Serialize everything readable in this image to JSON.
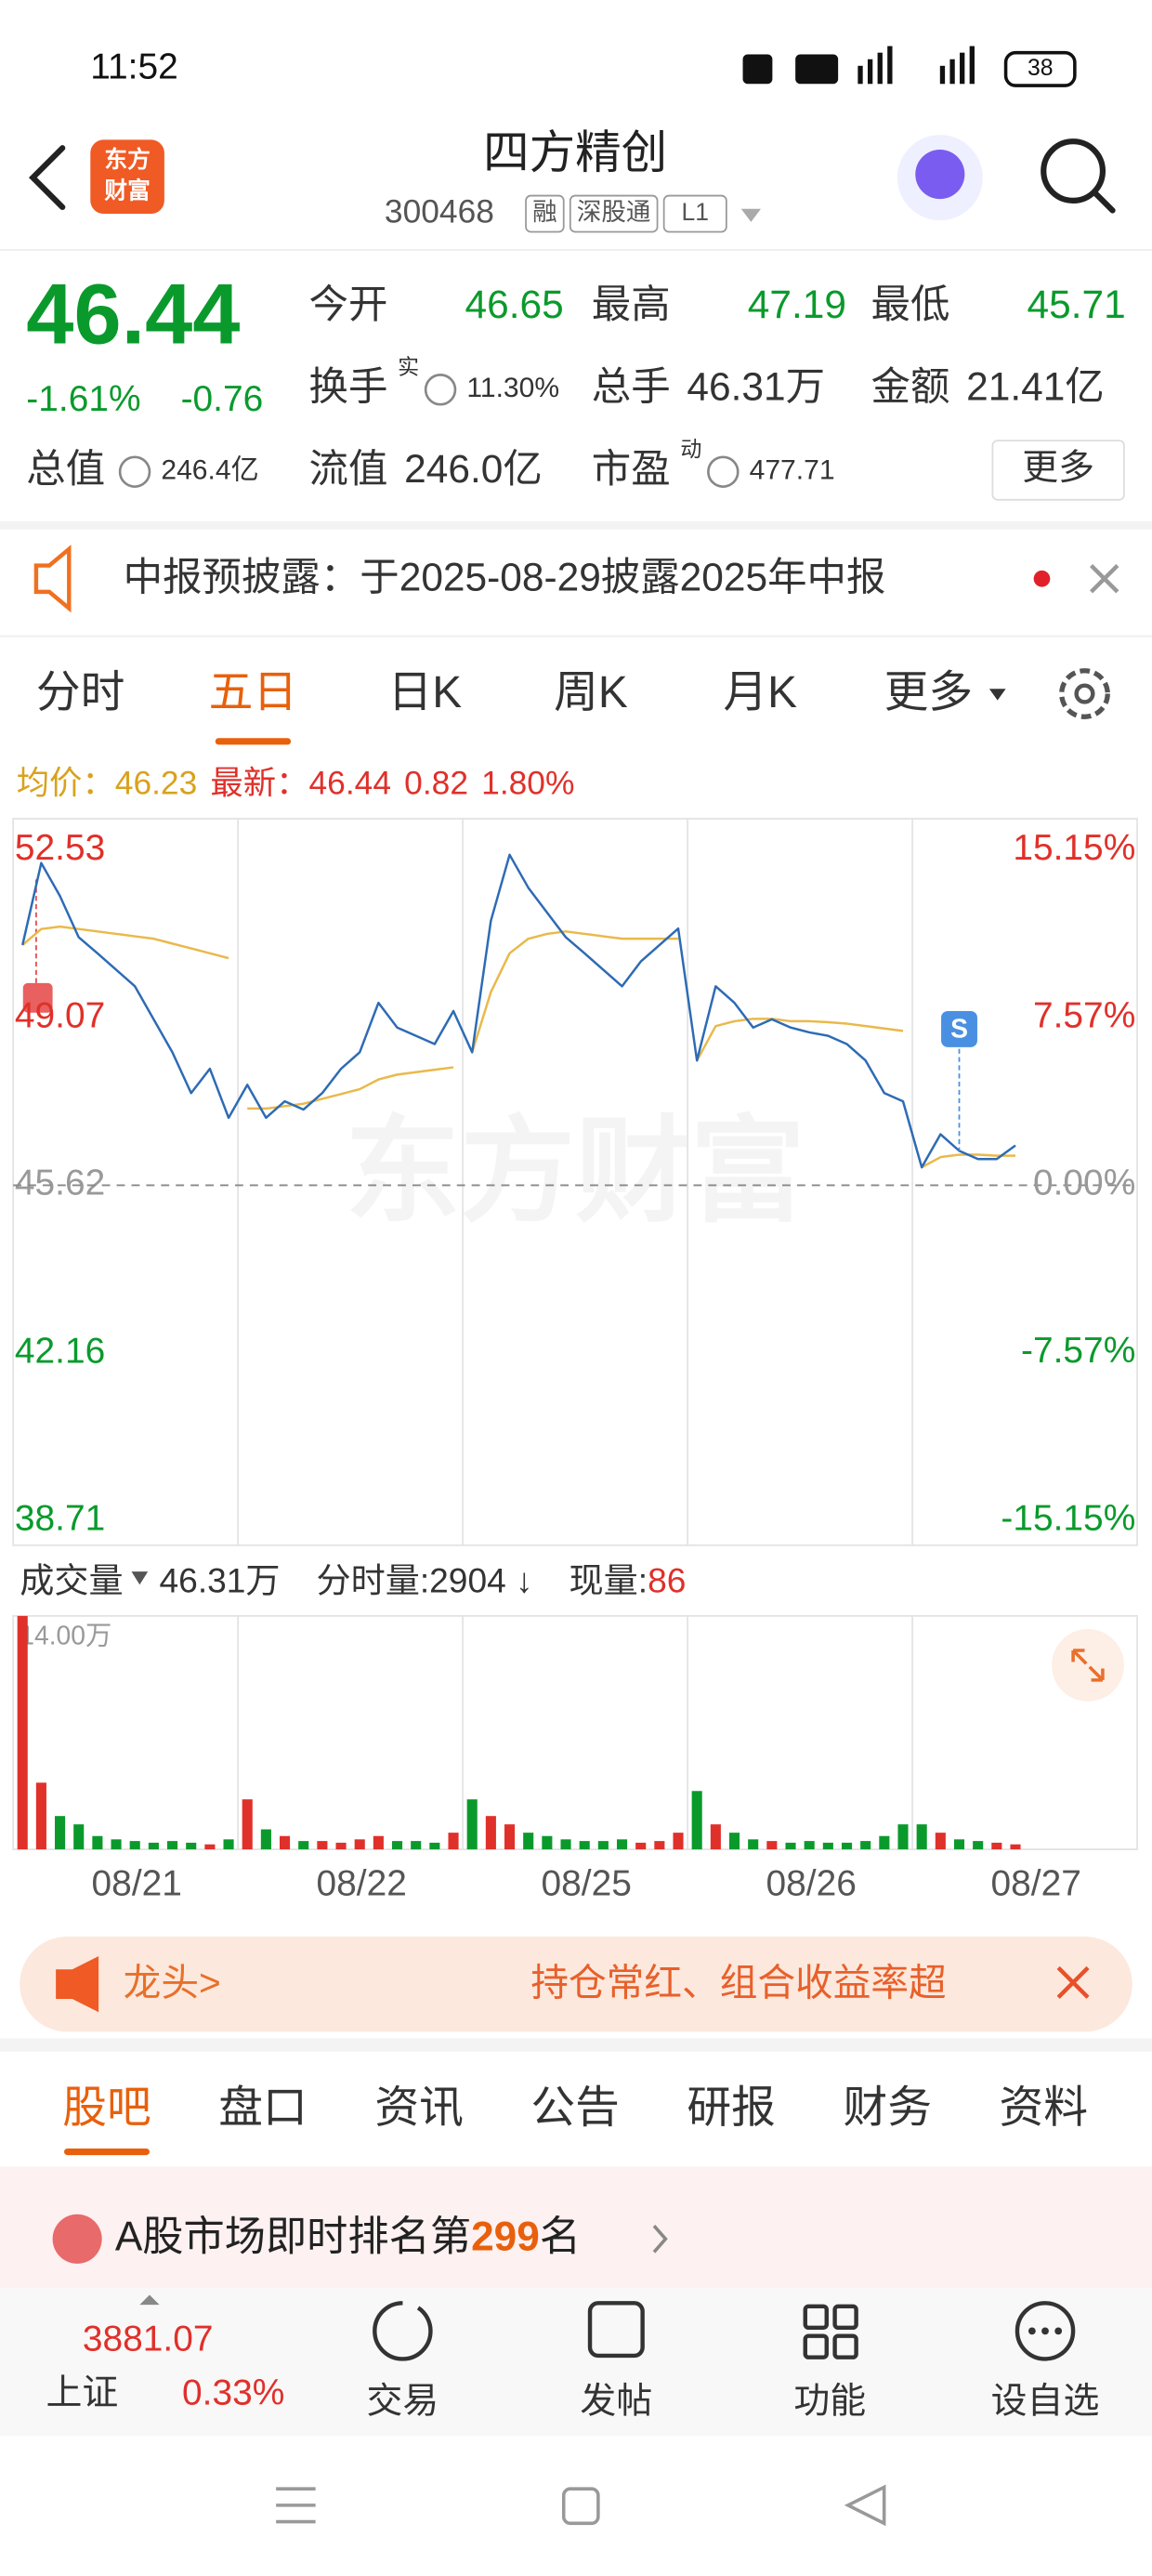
{
  "status": {
    "time": "11:52",
    "battery": "38"
  },
  "header": {
    "logo": [
      "东方",
      "财富"
    ],
    "title": "四方精创",
    "code": "300468",
    "tags": [
      "融",
      "深股通",
      "L1"
    ]
  },
  "quote": {
    "price": "46.44",
    "change_pct": "-1.61%",
    "change": "-0.76",
    "fields": [
      {
        "label": "今开",
        "value": "46.65"
      },
      {
        "label": "最高",
        "value": "47.19"
      },
      {
        "label": "最低",
        "value": "45.71"
      },
      {
        "label": "换手",
        "sup": "实",
        "value": "11.30%"
      },
      {
        "label": "总手",
        "value": "46.31万"
      },
      {
        "label": "金额",
        "value": "21.41亿"
      },
      {
        "label": "总值",
        "value": "246.4亿"
      },
      {
        "label": "流值",
        "value": "246.0亿"
      },
      {
        "label": "市盈",
        "sup": "动",
        "value": "477.71"
      }
    ],
    "more": "更多"
  },
  "notice": "中报预披露：于2025-08-29披露2025年中报",
  "tabs": {
    "items": [
      "分时",
      "五日",
      "日K",
      "周K",
      "月K",
      "更多"
    ],
    "active": 1
  },
  "legend": {
    "avg_label": "均价：",
    "avg": "46.23",
    "latest_label": "最新：",
    "latest": "46.44",
    "change": "0.82",
    "change_pct": "1.80%"
  },
  "price_chart": {
    "watermark": "东方财富",
    "ylim": [
      38.71,
      52.53
    ],
    "yticks": [
      52.53,
      49.07,
      45.62,
      42.16,
      38.71
    ],
    "y2lim": [
      -15.15,
      15.15
    ],
    "y2ticks": [
      {
        "value": 15.15,
        "label": "15.15%"
      },
      {
        "value": 7.57,
        "label": "7.57%"
      },
      {
        "value": 0,
        "label": "0.00%"
      },
      {
        "value": -7.57,
        "label": "-7.57%"
      },
      {
        "value": -15.15,
        "label": "-15.15%"
      }
    ],
    "days": [
      "08/21",
      "08/22",
      "08/25",
      "08/26",
      "08/27"
    ],
    "price": [
      50.57,
      52.26,
      51.58,
      50.73,
      50.4,
      50.06,
      49.72,
      49.04,
      48.36,
      47.52,
      48.02,
      47.01,
      47.69,
      47.01,
      47.35,
      47.18,
      47.52,
      48.02,
      48.36,
      49.38,
      48.87,
      48.7,
      48.53,
      49.21,
      48.36,
      51.07,
      52.43,
      51.75,
      51.24,
      50.73,
      50.4,
      50.06,
      49.72,
      50.23,
      50.57,
      50.91,
      48.19,
      49.72,
      49.38,
      48.87,
      49.04,
      48.87,
      48.77,
      48.7,
      48.53,
      48.19,
      47.52,
      47.35,
      45.99,
      46.67,
      46.33,
      46.16,
      46.16,
      46.44,
      null,
      null,
      null,
      null,
      null,
      null
    ],
    "avg": [
      50.57,
      50.9,
      50.95,
      50.9,
      50.85,
      50.8,
      50.75,
      50.7,
      50.6,
      50.5,
      50.4,
      50.3,
      47.2,
      47.2,
      47.25,
      47.3,
      47.4,
      47.5,
      47.6,
      47.8,
      47.9,
      47.95,
      48.0,
      48.05,
      48.36,
      49.6,
      50.4,
      50.7,
      50.8,
      50.85,
      50.8,
      50.75,
      50.7,
      50.7,
      50.7,
      50.7,
      48.19,
      48.9,
      49.0,
      49.05,
      49.05,
      49.0,
      49.0,
      48.98,
      48.95,
      48.9,
      48.85,
      48.8,
      45.99,
      46.2,
      46.25,
      46.25,
      46.23,
      46.23,
      null,
      null,
      null,
      null,
      null,
      null
    ],
    "marker": "S"
  },
  "volume": {
    "label": "成交量",
    "total": "46.31万",
    "tick_label": "分时量:2904 ↓",
    "now_label": "现量:",
    "now": "86",
    "ylim": [
      0,
      14
    ],
    "yticks": [
      {
        "value": 14,
        "label": "14.00万"
      }
    ],
    "values": [
      14,
      4,
      2,
      1.5,
      0.8,
      0.6,
      0.5,
      0.4,
      0.5,
      0.4,
      0.3,
      0.6,
      3,
      1.2,
      0.8,
      0.5,
      0.5,
      0.4,
      0.6,
      0.8,
      0.5,
      0.5,
      0.4,
      1.0,
      3,
      2,
      1.5,
      1,
      0.8,
      0.6,
      0.5,
      0.5,
      0.6,
      0.4,
      0.5,
      1,
      3.5,
      1.5,
      1,
      0.6,
      0.5,
      0.4,
      0.5,
      0.4,
      0.4,
      0.5,
      0.8,
      1.5,
      1.5,
      1,
      0.6,
      0.5,
      0.4,
      0.3,
      null,
      null,
      null,
      null,
      null,
      null
    ]
  },
  "banner": {
    "tag": "龙头>",
    "text": "持仓常红、组合收益率超"
  },
  "tabs2": {
    "items": [
      "股吧",
      "盘口",
      "资讯",
      "公告",
      "研报",
      "财务",
      "资料"
    ],
    "active": 0
  },
  "rank": {
    "prefix": "A股市场即时排名第",
    "rank": "299",
    "suffix": "名"
  },
  "index": {
    "value": "3881.07",
    "name": "上证",
    "change": "0.33%"
  },
  "toolbar": [
    "交易",
    "发帖",
    "功能",
    "设自选"
  ]
}
